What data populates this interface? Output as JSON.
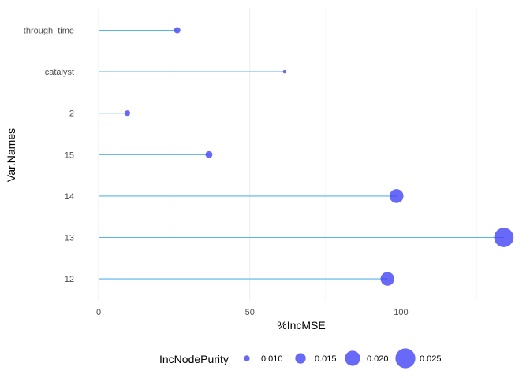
{
  "chart_data": {
    "type": "lollipop",
    "xlabel": "%IncMSE",
    "ylabel": "Var.Names",
    "xlim": [
      0,
      135
    ],
    "x_ticks": [
      0,
      50,
      100
    ],
    "grid": "vertical",
    "categories": [
      "through_time",
      "catalyst",
      "2",
      "15",
      "14",
      "13",
      "12"
    ],
    "values": [
      26,
      61.5,
      9.5,
      36.5,
      98.5,
      134,
      95.5
    ],
    "incnodepurity": [
      0.0105,
      0.0075,
      0.0098,
      0.0112,
      0.0186,
      0.0245,
      0.0184
    ],
    "colors": {
      "segment": "#56B4E9",
      "point": "#3F3FF5"
    },
    "legend": {
      "title": "IncNodePurity",
      "placement": "bottom",
      "entries": [
        {
          "label": "0.010",
          "value": 0.01
        },
        {
          "label": "0.015",
          "value": 0.015
        },
        {
          "label": "0.020",
          "value": 0.02
        },
        {
          "label": "0.025",
          "value": 0.025
        }
      ]
    }
  }
}
